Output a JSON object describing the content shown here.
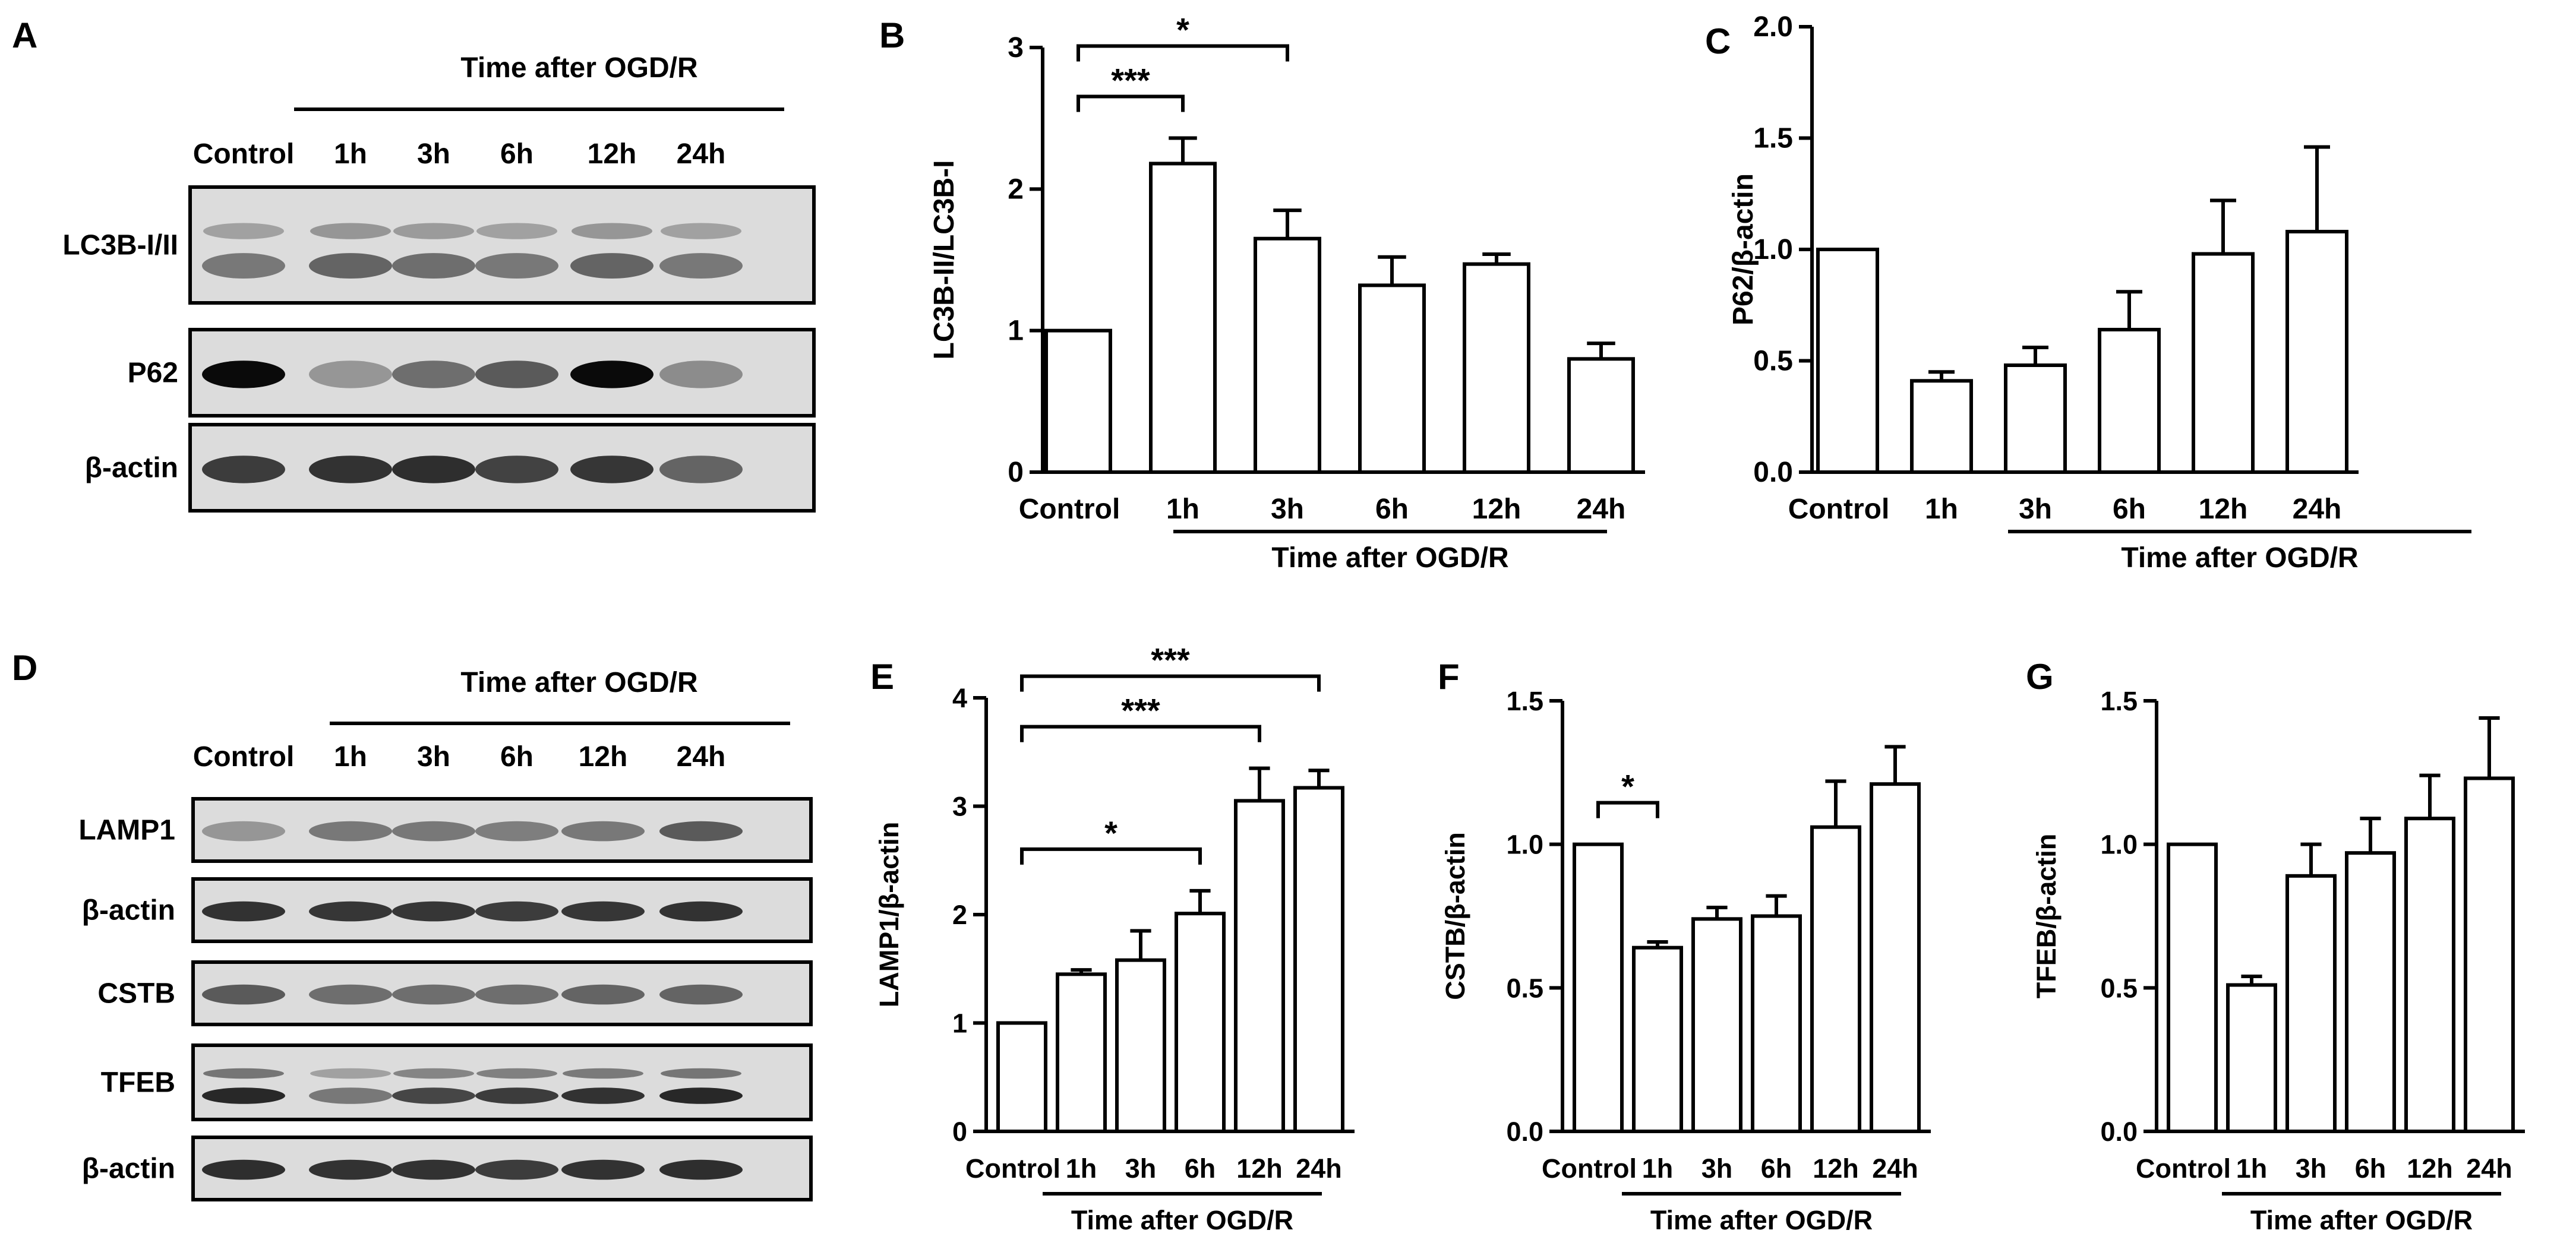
{
  "blot_panels": [
    {
      "letter": "A",
      "header": "Time after OGD/R",
      "lanes": [
        "Control",
        "1h",
        "3h",
        "6h",
        "12h",
        "24h"
      ],
      "rows": [
        {
          "label": "LC3B-I/II",
          "style": "double",
          "intensity": [
            0.45,
            0.55,
            0.5,
            0.45,
            0.55,
            0.45
          ]
        },
        {
          "label": "P62",
          "style": "single",
          "intensity": [
            1.0,
            0.3,
            0.5,
            0.6,
            1.0,
            0.35
          ]
        },
        {
          "label": "β-actin",
          "style": "single",
          "intensity": [
            0.75,
            0.8,
            0.82,
            0.72,
            0.78,
            0.55
          ]
        }
      ]
    },
    {
      "letter": "D",
      "header": "Time after OGD/R",
      "lanes": [
        "Control",
        "1h",
        "3h",
        "6h",
        "12h",
        "24h"
      ],
      "rows": [
        {
          "label": "LAMP1",
          "style": "single",
          "intensity": [
            0.3,
            0.45,
            0.45,
            0.42,
            0.45,
            0.6
          ]
        },
        {
          "label": "β-actin",
          "style": "single",
          "intensity": [
            0.8,
            0.78,
            0.78,
            0.75,
            0.78,
            0.8
          ]
        },
        {
          "label": "CSTB",
          "style": "single",
          "intensity": [
            0.6,
            0.5,
            0.5,
            0.5,
            0.55,
            0.55
          ]
        },
        {
          "label": "TFEB",
          "style": "double",
          "intensity": [
            0.85,
            0.45,
            0.7,
            0.75,
            0.8,
            0.85
          ]
        },
        {
          "label": "β-actin",
          "style": "single",
          "intensity": [
            0.82,
            0.8,
            0.8,
            0.75,
            0.8,
            0.82
          ]
        }
      ]
    }
  ],
  "chart_data": [
    {
      "letter": "B",
      "type": "bar",
      "categories": [
        "Control",
        "1h",
        "3h",
        "6h",
        "12h",
        "24h"
      ],
      "values": [
        1.0,
        2.18,
        1.65,
        1.32,
        1.47,
        0.8
      ],
      "errors": [
        0,
        0.18,
        0.2,
        0.2,
        0.07,
        0.11
      ],
      "ylabel": "LC3B-II/LC3B-I",
      "xlabel": "Time after OGD/R",
      "ylim": [
        0,
        3
      ],
      "yticks": [
        "0",
        "1",
        "2",
        "3"
      ],
      "significance": [
        {
          "from": 0,
          "to": 1,
          "label": "***"
        },
        {
          "from": 0,
          "to": 2,
          "label": "*"
        }
      ]
    },
    {
      "letter": "C",
      "type": "bar",
      "categories": [
        "Control",
        "1h",
        "3h",
        "6h",
        "12h",
        "24h"
      ],
      "values": [
        1.0,
        0.41,
        0.48,
        0.64,
        0.98,
        1.08
      ],
      "errors": [
        0,
        0.04,
        0.08,
        0.17,
        0.24,
        0.38
      ],
      "ylabel": "P62/β-actin",
      "xlabel": "Time after OGD/R",
      "ylim": [
        0,
        2
      ],
      "yticks": [
        "0.0",
        "0.5",
        "1.0",
        "1.5",
        "2.0"
      ],
      "significance": []
    },
    {
      "letter": "E",
      "type": "bar",
      "categories": [
        "Control",
        "1h",
        "3h",
        "6h",
        "12h",
        "24h"
      ],
      "values": [
        1.0,
        1.45,
        1.58,
        2.01,
        3.05,
        3.17
      ],
      "errors": [
        0,
        0.04,
        0.27,
        0.21,
        0.3,
        0.16
      ],
      "ylabel": "LAMP1/β-actin",
      "xlabel": "Time after OGD/R",
      "ylim": [
        0,
        4
      ],
      "yticks": [
        "0",
        "1",
        "2",
        "3",
        "4"
      ],
      "significance": [
        {
          "from": 0,
          "to": 3,
          "label": "*"
        },
        {
          "from": 0,
          "to": 4,
          "label": "***"
        },
        {
          "from": 0,
          "to": 5,
          "label": "***"
        }
      ]
    },
    {
      "letter": "F",
      "type": "bar",
      "categories": [
        "Control",
        "1h",
        "3h",
        "6h",
        "12h",
        "24h"
      ],
      "values": [
        1.0,
        0.64,
        0.74,
        0.75,
        1.06,
        1.21
      ],
      "errors": [
        0,
        0.02,
        0.04,
        0.07,
        0.16,
        0.13
      ],
      "ylabel": "CSTB/β-actin",
      "xlabel": "Time after OGD/R",
      "ylim": [
        0,
        1.5
      ],
      "yticks": [
        "0.0",
        "0.5",
        "1.0",
        "1.5"
      ],
      "significance": [
        {
          "from": 0,
          "to": 1,
          "label": "*"
        }
      ]
    },
    {
      "letter": "G",
      "type": "bar",
      "categories": [
        "Control",
        "1h",
        "3h",
        "6h",
        "12h",
        "24h"
      ],
      "values": [
        1.0,
        0.51,
        0.89,
        0.97,
        1.09,
        1.23
      ],
      "errors": [
        0,
        0.03,
        0.11,
        0.12,
        0.15,
        0.21
      ],
      "ylabel": "TFEB/β-actin",
      "xlabel": "Time after OGD/R",
      "ylim": [
        0,
        1.5
      ],
      "yticks": [
        "0.0",
        "0.5",
        "1.0",
        "1.5"
      ],
      "significance": []
    }
  ]
}
